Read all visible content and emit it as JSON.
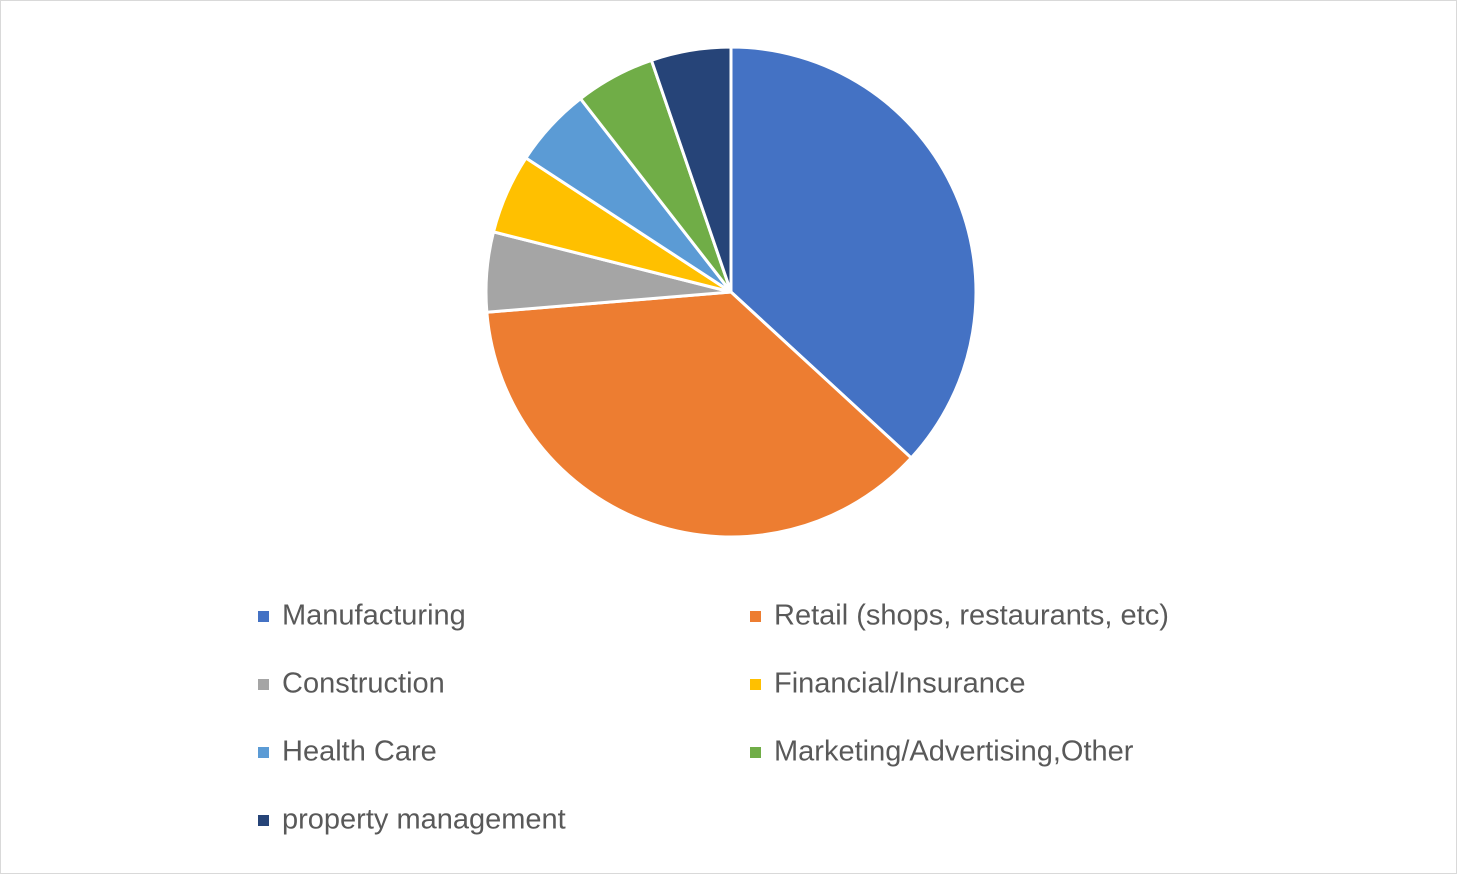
{
  "chart_data": {
    "type": "pie",
    "categories": [
      "Manufacturing",
      "Retail (shops, restaurants, etc)",
      "Construction",
      "Financial/Insurance",
      "Health Care",
      "Marketing/Advertising,Other",
      "property management"
    ],
    "values": [
      7,
      7,
      1,
      1,
      1,
      1,
      1
    ],
    "colors": [
      "#4472c4",
      "#ed7d31",
      "#a5a5a5",
      "#ffc000",
      "#5b9bd5",
      "#70ad47",
      "#264478"
    ],
    "legend": "bottom"
  }
}
